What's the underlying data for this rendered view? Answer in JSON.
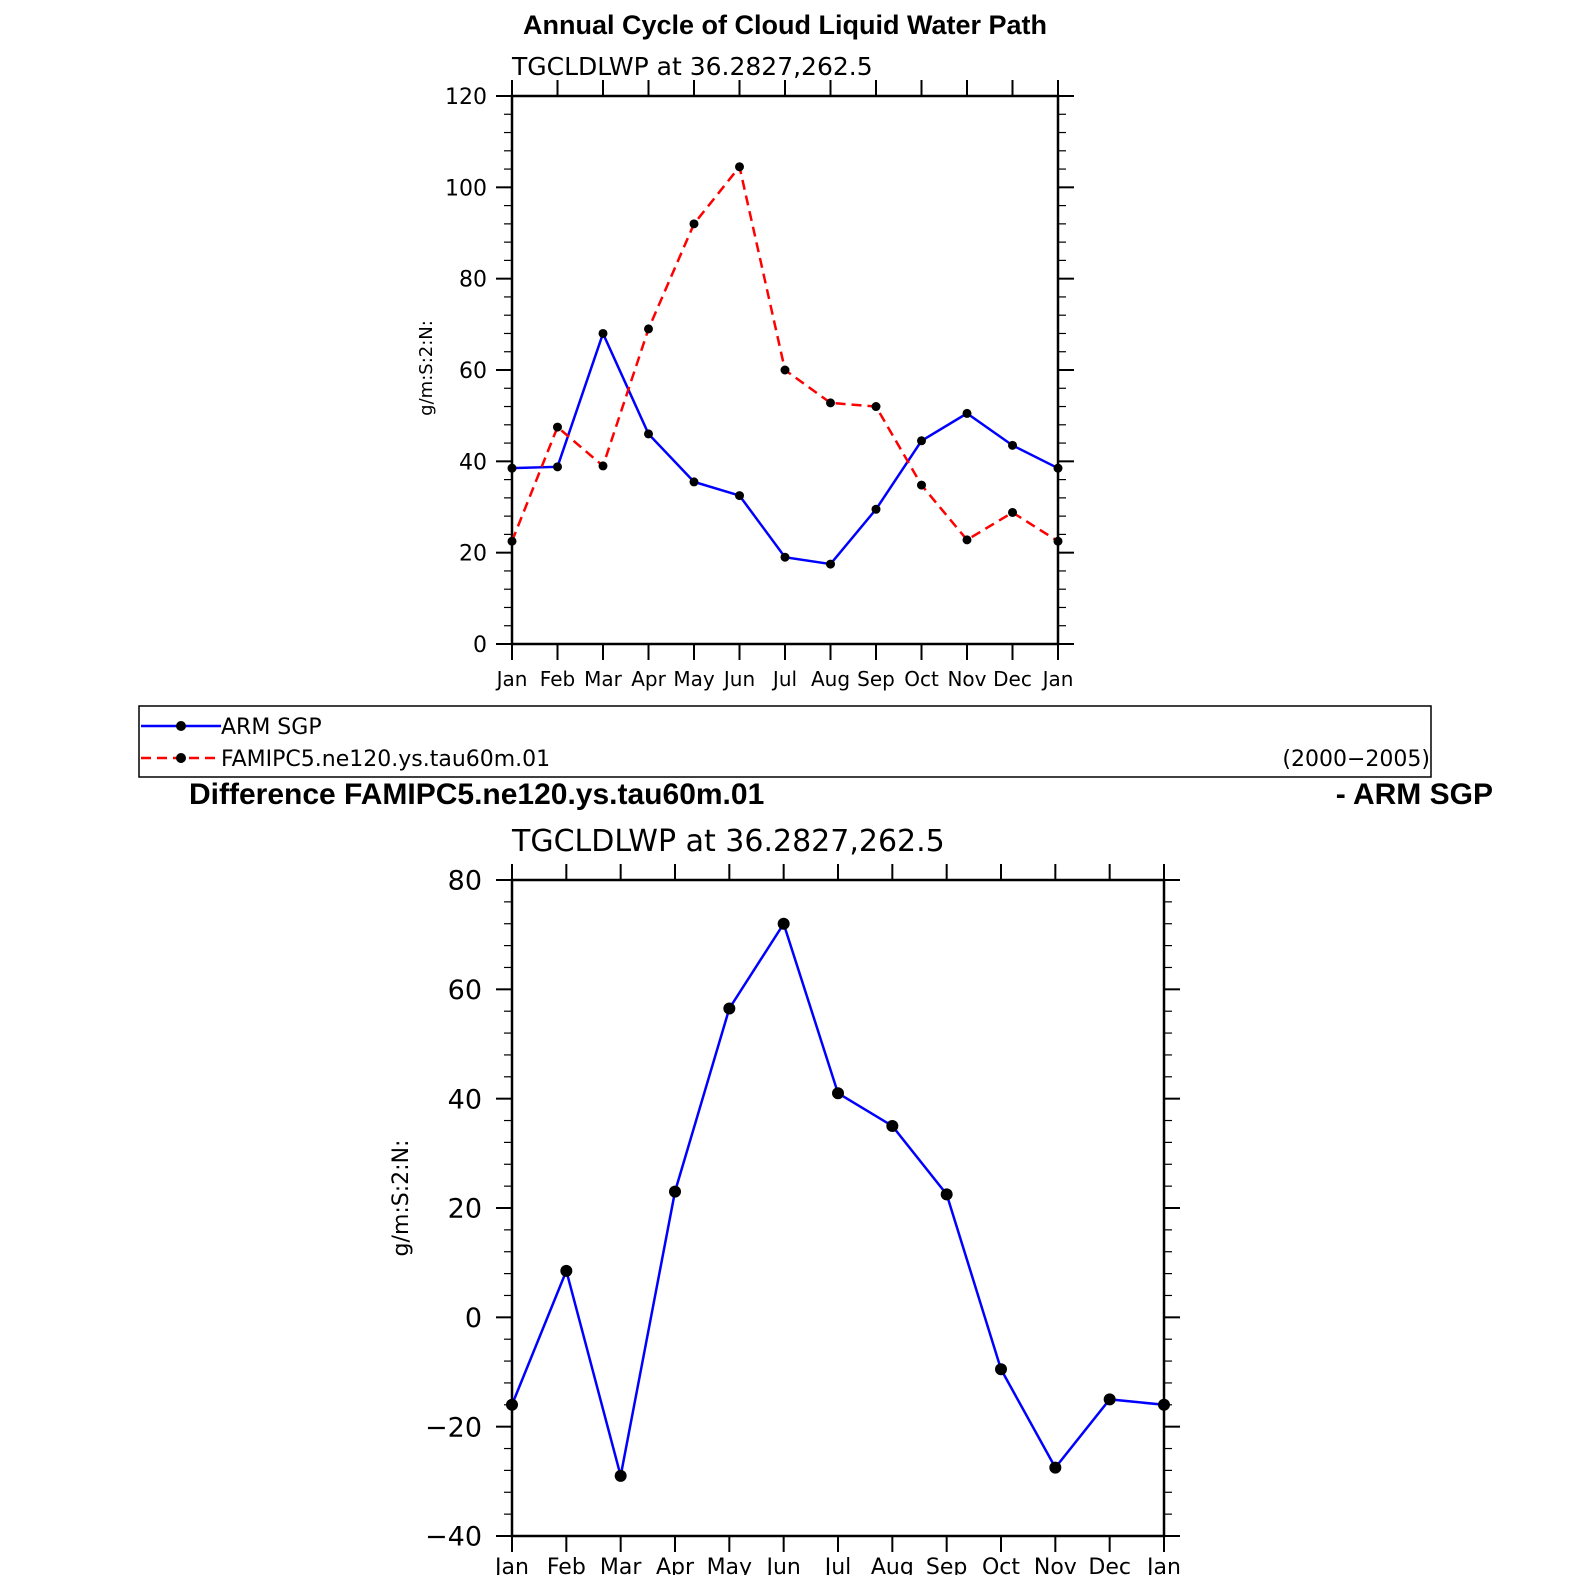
{
  "chart_data": [
    {
      "type": "line",
      "title": "Annual Cycle of Cloud Liquid Water Path",
      "subtitle": "TGCLDLWP  at  36.2827,262.5",
      "xlabel": "",
      "ylabel": "g/m:S:2:N:",
      "categories": [
        "Jan",
        "Feb",
        "Mar",
        "Apr",
        "May",
        "Jun",
        "Jul",
        "Aug",
        "Sep",
        "Oct",
        "Nov",
        "Dec",
        "Jan"
      ],
      "ylim": [
        0,
        120
      ],
      "yticks": [
        0,
        20,
        40,
        60,
        80,
        100,
        120
      ],
      "series": [
        {
          "name": "ARM  SGP",
          "color": "#0000ff",
          "dash": "solid",
          "values": [
            38.5,
            38.8,
            68.0,
            46.0,
            35.5,
            32.5,
            19.0,
            17.5,
            29.5,
            44.5,
            50.5,
            43.5,
            38.5
          ]
        },
        {
          "name": "FAMIPC5.ne120.ys.tau60m.01",
          "color": "#ff0000",
          "dash": "dashed",
          "values": [
            22.5,
            47.5,
            39.0,
            69.0,
            92.0,
            104.5,
            60.0,
            52.8,
            52.0,
            34.8,
            22.8,
            28.8,
            22.5
          ]
        }
      ],
      "legend_period": "(2000−2005)"
    },
    {
      "type": "line",
      "title_left": "Difference FAMIPC5.ne120.ys.tau60m.01",
      "title_right": "- ARM SGP",
      "subtitle": "TGCLDLWP  at  36.2827,262.5",
      "xlabel": "",
      "ylabel": "g/m:S:2:N:",
      "categories": [
        "Jan",
        "Feb",
        "Mar",
        "Apr",
        "May",
        "Jun",
        "Jul",
        "Aug",
        "Sep",
        "Oct",
        "Nov",
        "Dec",
        "Jan"
      ],
      "ylim": [
        -40,
        80
      ],
      "yticks": [
        -40,
        -20,
        0,
        20,
        40,
        60,
        80
      ],
      "series": [
        {
          "name": "Difference",
          "color": "#0000ff",
          "dash": "solid",
          "values": [
            -16.0,
            8.5,
            -29.0,
            23.0,
            56.5,
            72.0,
            41.0,
            35.0,
            22.5,
            -9.5,
            -27.5,
            -15.0,
            -16.0
          ]
        }
      ]
    }
  ]
}
